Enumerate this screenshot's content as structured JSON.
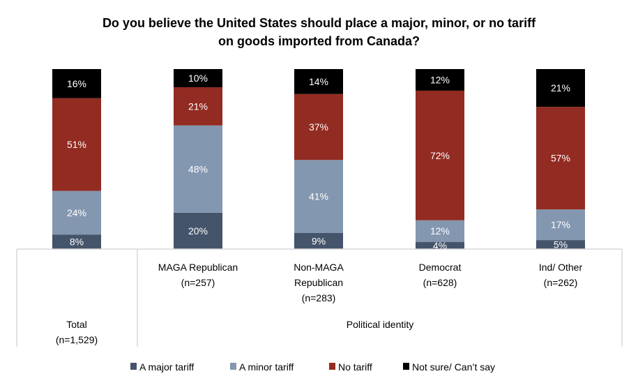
{
  "chart_data": {
    "type": "bar",
    "stacked": true,
    "title_lines": [
      "Do you believe the United States should place a major, minor, or no tariff",
      "on goods imported from Canada?"
    ],
    "categories": [
      {
        "lines": [
          "Total",
          "(n=1,529)"
        ]
      },
      {
        "lines": [
          "MAGA Republican",
          "(n=257)"
        ]
      },
      {
        "lines": [
          "Non-MAGA",
          "Republican",
          "(n=283)"
        ]
      },
      {
        "lines": [
          "Democrat",
          "(n=628)"
        ]
      },
      {
        "lines": [
          "Ind/ Other",
          "(n=262)"
        ]
      }
    ],
    "group_label": "Political identity",
    "series": [
      {
        "name": "A major tariff",
        "color": "#44546a",
        "values": [
          8,
          20,
          9,
          4,
          5
        ]
      },
      {
        "name": "A minor tariff",
        "color": "#8497b0",
        "values": [
          24,
          48,
          41,
          12,
          17
        ]
      },
      {
        "name": "No tariff",
        "color": "#922b21",
        "values": [
          51,
          21,
          37,
          72,
          57
        ]
      },
      {
        "name": "Not sure/ Can’t say",
        "color": "#000000",
        "values": [
          16,
          10,
          14,
          12,
          21
        ]
      }
    ],
    "value_suffix": "%",
    "legend_position": "bottom",
    "grid": false
  }
}
